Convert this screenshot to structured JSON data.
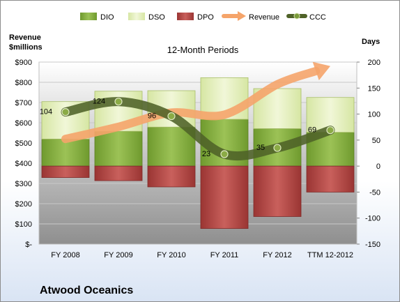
{
  "chart_data": {
    "type": "bar",
    "title": "12-Month Periods",
    "company": "Atwood Oceanics",
    "y_left_label": [
      "Revenue",
      "$millions"
    ],
    "y_right_label": "Days",
    "categories": [
      "FY 2008",
      "FY 2009",
      "FY 2010",
      "FY 2011",
      "FY 2012",
      "TTM 12-2012"
    ],
    "y_left": {
      "min": 0,
      "max": 900,
      "step": 100,
      "ticks": [
        "$-",
        "$100",
        "$200",
        "$300",
        "$400",
        "$500",
        "$600",
        "$700",
        "$800",
        "$900"
      ]
    },
    "y_right": {
      "min": -150,
      "max": 200,
      "step": 50,
      "ticks": [
        "-150",
        "-100",
        "-50",
        "0",
        "50",
        "100",
        "150",
        "200"
      ]
    },
    "series": [
      {
        "name": "DIO",
        "axis": "right",
        "values": [
          52,
          67,
          75,
          90,
          72,
          65
        ]
      },
      {
        "name": "DSO",
        "axis": "right",
        "values": [
          72,
          77,
          70,
          80,
          77,
          67
        ]
      },
      {
        "name": "DPO",
        "axis": "right",
        "values": [
          -22,
          -28,
          -40,
          -120,
          -97,
          -50
        ]
      },
      {
        "name": "Revenue",
        "axis": "left",
        "values": [
          520,
          580,
          650,
          640,
          790,
          880
        ]
      },
      {
        "name": "CCC",
        "axis": "right",
        "values": [
          104,
          124,
          96,
          23,
          35,
          69
        ]
      }
    ],
    "ccc_labels": [
      "104",
      "124",
      "96",
      "23",
      "35",
      "69"
    ],
    "colors": {
      "DIO": "#8cb445",
      "DSO": "#e6f0bf",
      "DPO": "#b94a48",
      "Revenue": "#f5a46a",
      "CCC": "#4f6228",
      "plot_bg": "#a6a6a6"
    }
  }
}
